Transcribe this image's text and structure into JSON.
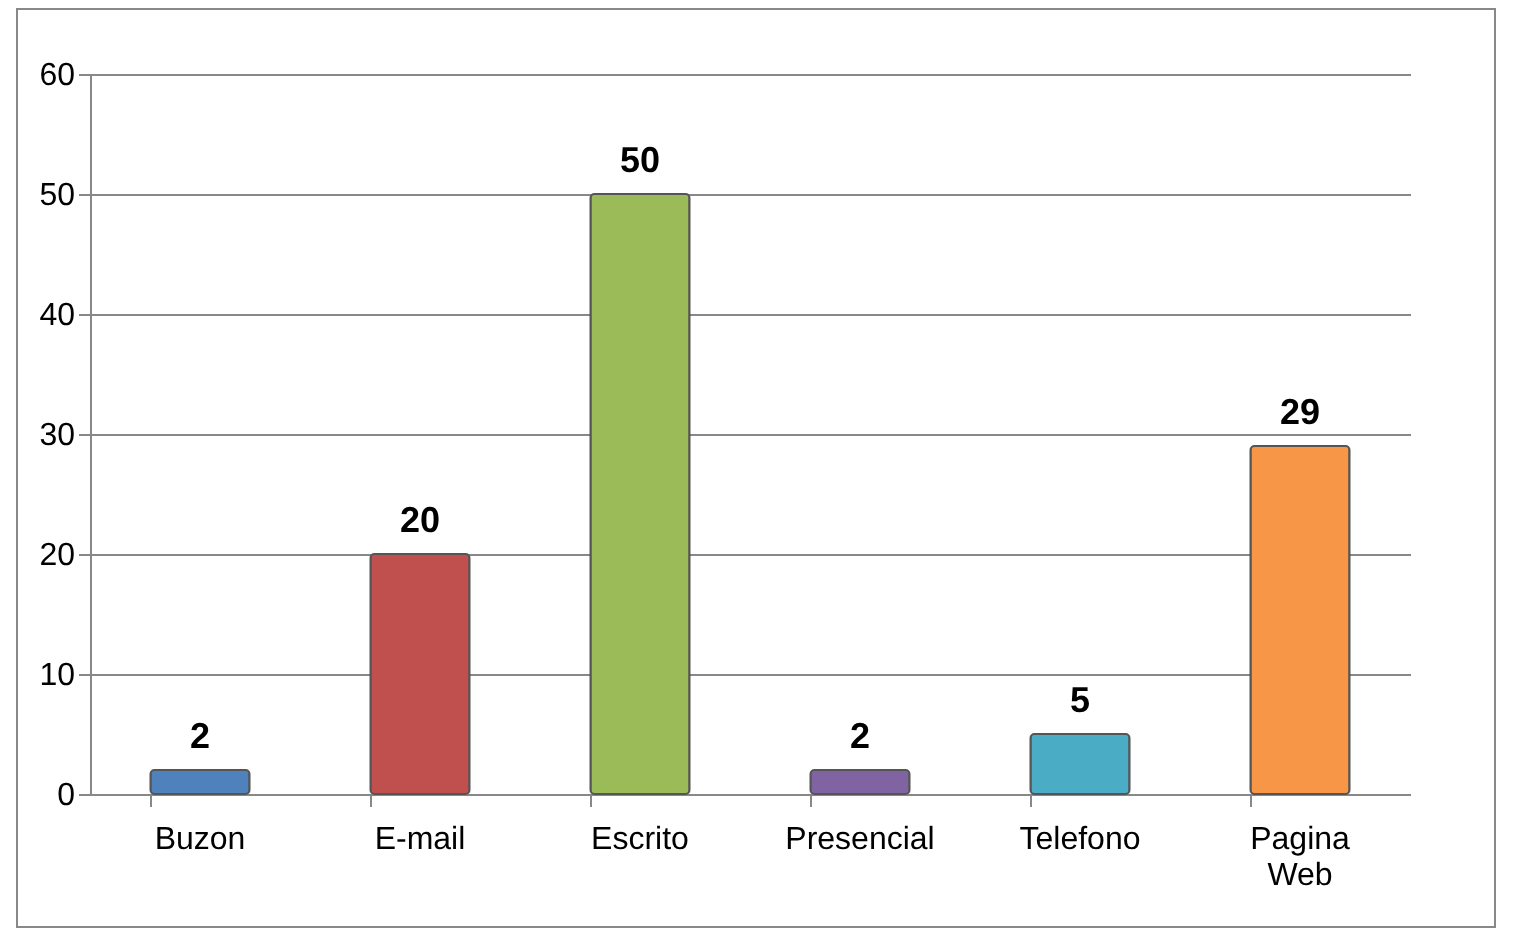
{
  "chart_data": {
    "type": "bar",
    "categories": [
      "Buzon",
      "E-mail",
      "Escrito",
      "Presencial",
      "Telefono",
      "Pagina Web"
    ],
    "values": [
      2,
      20,
      50,
      2,
      5,
      29
    ],
    "colors": [
      "#4f81bd",
      "#c0504d",
      "#9bbb59",
      "#8064a2",
      "#4bacc6",
      "#f79646"
    ],
    "ylim": [
      0,
      60
    ],
    "yticks": [
      0,
      10,
      20,
      30,
      40,
      50,
      60
    ],
    "grid": "y",
    "data_labels": true
  }
}
